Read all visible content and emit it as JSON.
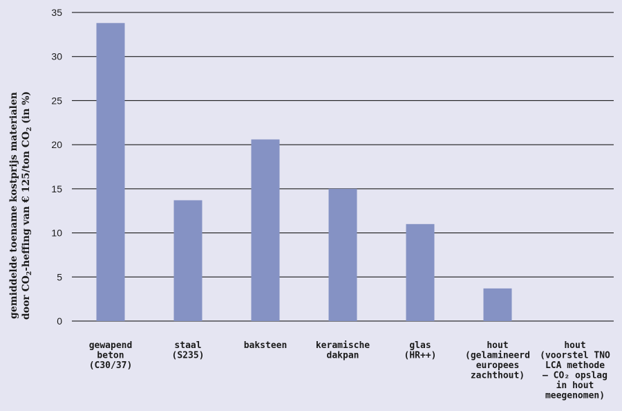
{
  "chart_data": {
    "type": "bar",
    "categories": [
      [
        "gewapend",
        "beton",
        "(C30/37)"
      ],
      [
        "staal",
        "(S235)"
      ],
      [
        "baksteen"
      ],
      [
        "keramische",
        "dakpan"
      ],
      [
        "glas",
        "(HR++)"
      ],
      [
        "hout",
        "(gelamineerd",
        "europees",
        "zachthout)"
      ],
      [
        "hout",
        "(voorstel TNO",
        "LCA methode",
        "– CO₂ opslag",
        "in hout",
        "meegenomen)"
      ]
    ],
    "values": [
      33.8,
      13.7,
      20.6,
      15.0,
      11.0,
      3.7,
      0
    ],
    "ylabel_line1": "gemiddelde toename kostprijs materialen",
    "ylabel_line2_a": "door CO",
    "ylabel_line2_sub1": "2",
    "ylabel_line2_b": "-heffing van € 125/ton CO",
    "ylabel_line2_sub2": "2",
    "ylabel_line2_c": " (in %)",
    "ylim": [
      0,
      35
    ],
    "yticks": [
      0,
      5,
      10,
      15,
      20,
      25,
      30,
      35
    ],
    "grid": true,
    "bar_color": "#8592c4",
    "grid_color": "#000000",
    "background": "#e5e5f2"
  }
}
